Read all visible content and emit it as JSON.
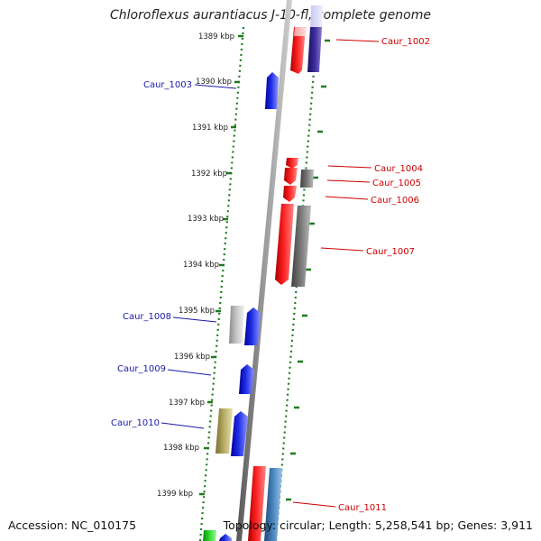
{
  "title": "Chloroflexus aurantiacus J-10-fl, complete genome",
  "footer": {
    "accession": "Accession: NC_010175",
    "summary": "Topology: circular; Length: 5,258,541 bp; Genes: 3,911"
  },
  "ticks": [
    "1389 kbp",
    "1390 kbp",
    "1391 kbp",
    "1392 kbp",
    "1393 kbp",
    "1394 kbp",
    "1395 kbp",
    "1396 kbp",
    "1397 kbp",
    "1398 kbp",
    "1399 kbp"
  ],
  "forward_genes": [
    {
      "label": "Caur_1002",
      "color": "#e8262a"
    },
    {
      "label": "Caur_1004",
      "color": "#e8262a"
    },
    {
      "label": "Caur_1005",
      "color": "#e8262a"
    },
    {
      "label": "Caur_1006",
      "color": "#e8262a"
    },
    {
      "label": "Caur_1007",
      "color": "#e8262a"
    },
    {
      "label": "Caur_1011",
      "color": "#e8262a"
    }
  ],
  "reverse_genes": [
    {
      "label": "Caur_1003",
      "color": "#1f2ee6"
    },
    {
      "label": "Caur_1008",
      "color": "#1f2ee6"
    },
    {
      "label": "Caur_1009",
      "color": "#1f2ee6"
    },
    {
      "label": "Caur_1010",
      "color": "#1f2ee6"
    }
  ],
  "colors": {
    "forward": "#e8262a",
    "reverse": "#1f2ee6",
    "backbone": "#8a8a8a",
    "tick": "#1f7a1f"
  }
}
